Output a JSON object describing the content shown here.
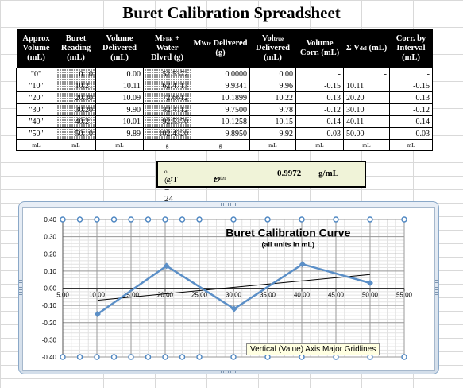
{
  "title": "Buret Calibration Spreadsheet",
  "headers": {
    "approx_volume": "Approx Volume (mL)",
    "buret_reading": "Buret Reading (mL)",
    "volume_delivered": "Volume Delivered (mL)",
    "m_flsk_main": "M",
    "m_flsk_sub": "Flsk",
    "m_flsk_rest": " + Water Dlvrd (g)",
    "m_wtr_main": "M",
    "m_wtr_sub": "Wtr",
    "m_wtr_rest": " Delivered (g)",
    "vol_true_main": "Vol",
    "vol_true_sub": "true",
    "vol_true_rest": " Delivered (mL)",
    "volume_corr": "Volume Corr. (mL)",
    "sum_v_main": "Σ V",
    "sum_v_sub": "del",
    "sum_v_rest": " (mL)",
    "corr_by_interval": "Corr. by Interval (mL)"
  },
  "rows": [
    {
      "approx": "\"0\"",
      "buret": "0.10",
      "vol": "0.00",
      "mflsk": "52.5372",
      "mwtr": "0.0000",
      "voltrue": "0.00",
      "corr": "-",
      "sumv": "-",
      "interval": "-"
    },
    {
      "approx": "\"10\"",
      "buret": "10.21",
      "vol": "10.11",
      "mflsk": "62.4713",
      "mwtr": "9.9341",
      "voltrue": "9.96",
      "corr": "-0.15",
      "sumv": "10.11",
      "interval": "-0.15"
    },
    {
      "approx": "\"20\"",
      "buret": "20.30",
      "vol": "10.09",
      "mflsk": "72.6612",
      "mwtr": "10.1899",
      "voltrue": "10.22",
      "corr": "0.13",
      "sumv": "20.20",
      "interval": "0.13"
    },
    {
      "approx": "\"30\"",
      "buret": "30.20",
      "vol": "9.90",
      "mflsk": "82.4112",
      "mwtr": "9.7500",
      "voltrue": "9.78",
      "corr": "-0.12",
      "sumv": "30.10",
      "interval": "-0.12"
    },
    {
      "approx": "\"40\"",
      "buret": "40.21",
      "vol": "10.01",
      "mflsk": "92.5370",
      "mwtr": "10.1258",
      "voltrue": "10.15",
      "corr": "0.14",
      "sumv": "40.11",
      "interval": "0.14"
    },
    {
      "approx": "\"50\"",
      "buret": "50.10",
      "vol": "9.89",
      "mflsk": "102.4320",
      "mwtr": "9.8950",
      "voltrue": "9.92",
      "corr": "0.03",
      "sumv": "50.00",
      "interval": "0.03"
    }
  ],
  "units": [
    "mL",
    "mL",
    "mL",
    "g",
    "g",
    "mL",
    "mL",
    "mL",
    "mL"
  ],
  "temp": {
    "label": "@T = 24",
    "degree": "o",
    "d_main": "D",
    "d_sub": "water",
    "d_eq": " =",
    "value": "0.9972",
    "unit": "g/mL"
  },
  "tooltip": "Vertical (Value) Axis Major Gridlines",
  "chart_data": {
    "type": "line",
    "title": "Buret Calibration Curve",
    "subtitle": "(all units in mL)",
    "xlabel": "",
    "ylabel": "",
    "x": [
      10.11,
      20.2,
      30.1,
      40.11,
      50.0
    ],
    "series": [
      {
        "values": [
          -0.15,
          0.13,
          -0.12,
          0.14,
          0.03
        ],
        "color": "#5b8fc7"
      }
    ],
    "trendline": {
      "x": [
        10.11,
        50.0
      ],
      "y": [
        -0.07,
        0.08
      ],
      "color": "#000000"
    },
    "xlim": [
      5,
      55
    ],
    "ylim": [
      -0.4,
      0.4
    ],
    "x_ticks": [
      "5.00",
      "10.00",
      "15.00",
      "20.00",
      "25.00",
      "30.00",
      "35.00",
      "40.00",
      "45.00",
      "50.00",
      "55.00"
    ],
    "y_ticks": [
      "0.40",
      "0.30",
      "0.20",
      "0.10",
      "0.00",
      "-0.10",
      "-0.20",
      "-0.30",
      "-0.40"
    ],
    "grid": "on",
    "legend": "none"
  }
}
